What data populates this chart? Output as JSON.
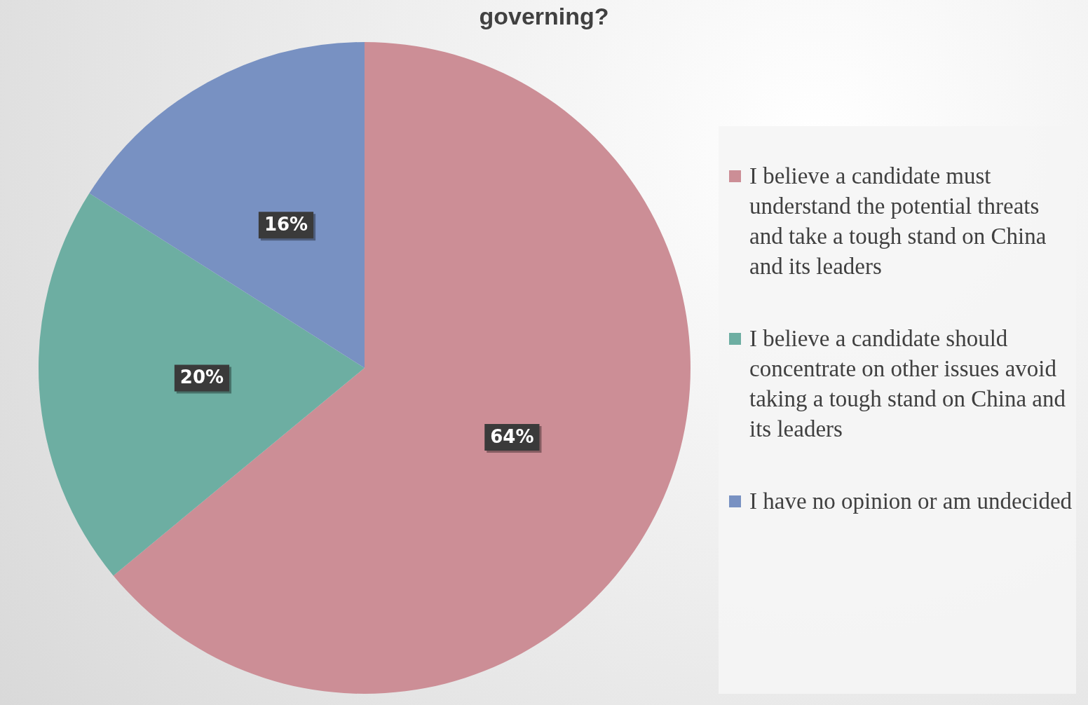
{
  "chart_data": {
    "type": "pie",
    "title": "governing?",
    "categories": [
      "I believe a candidate must understand the potential threats and take a tough stand on China and its leaders",
      "I believe a candidate should concentrate on other issues avoid taking a tough stand on China and its leaders",
      "I have no opinion or am undecided"
    ],
    "values": [
      64,
      20,
      16
    ],
    "colors": [
      "#cc8e96",
      "#6daea2",
      "#7891c2"
    ],
    "value_labels": [
      "64%",
      "20%",
      "16%"
    ],
    "legend": "right"
  }
}
